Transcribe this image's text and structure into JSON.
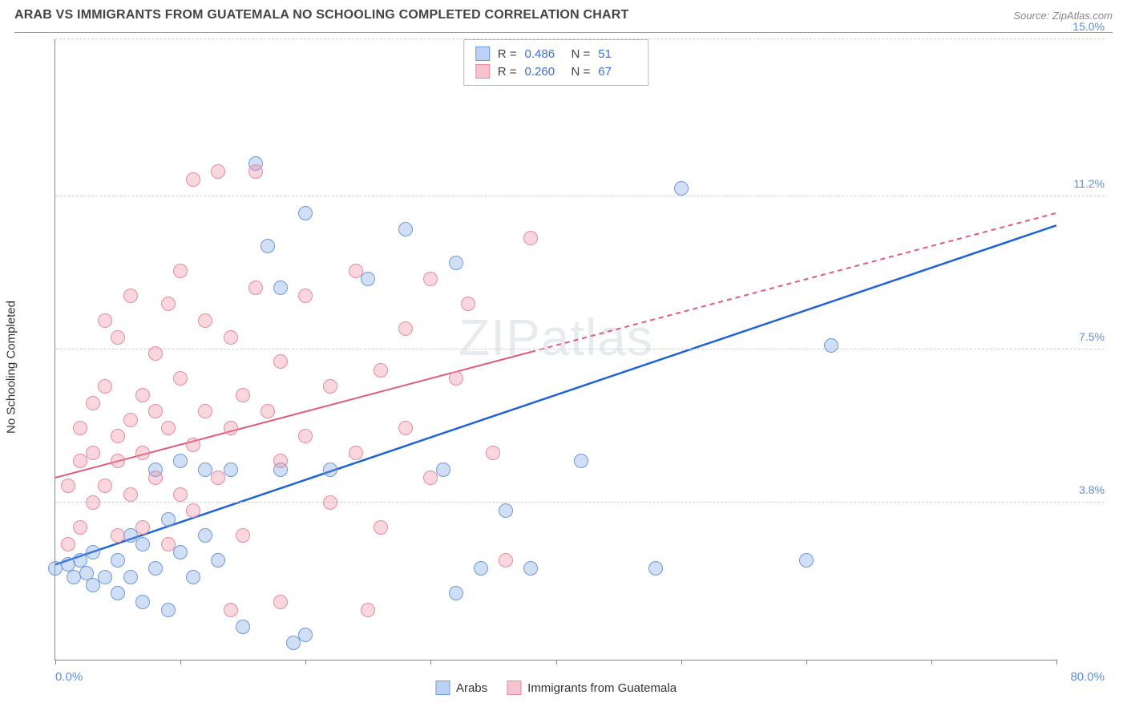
{
  "title": "ARAB VS IMMIGRANTS FROM GUATEMALA NO SCHOOLING COMPLETED CORRELATION CHART",
  "source_label": "Source:",
  "source_name": "ZipAtlas.com",
  "ylabel": "No Schooling Completed",
  "watermark_primary": "ZIP",
  "watermark_secondary": "atlas",
  "chart": {
    "type": "scatter",
    "xlim": [
      0,
      80
    ],
    "ylim": [
      0,
      15
    ],
    "x_min_label": "0.0%",
    "x_max_label": "80.0%",
    "y_ticks": [
      3.8,
      7.5,
      11.2,
      15.0
    ],
    "y_tick_labels": [
      "3.8%",
      "7.5%",
      "11.2%",
      "15.0%"
    ],
    "x_tick_positions": [
      0,
      10,
      20,
      30,
      40,
      50,
      60,
      70,
      80
    ],
    "background_color": "#ffffff",
    "grid_color": "#d0d0d0",
    "axis_color": "#888888",
    "point_radius": 9,
    "point_border_width": 1.5,
    "series": [
      {
        "name": "Arabs",
        "fill_color": "rgba(120,160,230,0.35)",
        "stroke_color": "#6d9ae0",
        "swatch_fill": "#bcd2f2",
        "swatch_border": "#6d9ae0",
        "stats": {
          "R": "0.486",
          "N": "51"
        },
        "trend": {
          "color": "#1f63d6",
          "width": 2.5,
          "dash_solid_until_x": 80,
          "x1": 0,
          "y1": 2.3,
          "x2": 80,
          "y2": 10.5
        },
        "points": [
          [
            0,
            2.2
          ],
          [
            1,
            2.3
          ],
          [
            1.5,
            2.0
          ],
          [
            2,
            2.4
          ],
          [
            2.5,
            2.1
          ],
          [
            3,
            1.8
          ],
          [
            3,
            2.6
          ],
          [
            4,
            2.0
          ],
          [
            5,
            1.6
          ],
          [
            5,
            2.4
          ],
          [
            6,
            2.0
          ],
          [
            6,
            3.0
          ],
          [
            7,
            1.4
          ],
          [
            7,
            2.8
          ],
          [
            8,
            2.2
          ],
          [
            8,
            4.6
          ],
          [
            9,
            1.2
          ],
          [
            9,
            3.4
          ],
          [
            10,
            2.6
          ],
          [
            10,
            4.8
          ],
          [
            11,
            2.0
          ],
          [
            12,
            3.0
          ],
          [
            12,
            4.6
          ],
          [
            13,
            2.4
          ],
          [
            14,
            4.6
          ],
          [
            15,
            0.8
          ],
          [
            16,
            12.0
          ],
          [
            17,
            10.0
          ],
          [
            18,
            4.6
          ],
          [
            18,
            9.0
          ],
          [
            19,
            0.4
          ],
          [
            20,
            10.8
          ],
          [
            20,
            0.6
          ],
          [
            22,
            4.6
          ],
          [
            25,
            9.2
          ],
          [
            28,
            10.4
          ],
          [
            31,
            4.6
          ],
          [
            32,
            9.6
          ],
          [
            32,
            1.6
          ],
          [
            34,
            2.2
          ],
          [
            36,
            3.6
          ],
          [
            38,
            2.2
          ],
          [
            42,
            4.8
          ],
          [
            50,
            11.4
          ],
          [
            48,
            2.2
          ],
          [
            62,
            7.6
          ],
          [
            60,
            2.4
          ]
        ]
      },
      {
        "name": "Immigrants from Guatemala",
        "fill_color": "rgba(240,140,160,0.35)",
        "stroke_color": "#e88aa0",
        "swatch_fill": "#f6c3cf",
        "swatch_border": "#e88aa0",
        "stats": {
          "R": "0.260",
          "N": "67"
        },
        "trend": {
          "color": "#e35b7a",
          "width": 2,
          "dash_solid_until_x": 38,
          "x1": 0,
          "y1": 4.4,
          "x2": 80,
          "y2": 10.8
        },
        "points": [
          [
            1,
            2.8
          ],
          [
            1,
            4.2
          ],
          [
            2,
            3.2
          ],
          [
            2,
            4.8
          ],
          [
            2,
            5.6
          ],
          [
            3,
            3.8
          ],
          [
            3,
            5.0
          ],
          [
            3,
            6.2
          ],
          [
            4,
            4.2
          ],
          [
            4,
            6.6
          ],
          [
            4,
            8.2
          ],
          [
            5,
            3.0
          ],
          [
            5,
            4.8
          ],
          [
            5,
            5.4
          ],
          [
            5,
            7.8
          ],
          [
            6,
            4.0
          ],
          [
            6,
            5.8
          ],
          [
            6,
            8.8
          ],
          [
            7,
            3.2
          ],
          [
            7,
            5.0
          ],
          [
            7,
            6.4
          ],
          [
            8,
            4.4
          ],
          [
            8,
            6.0
          ],
          [
            8,
            7.4
          ],
          [
            9,
            2.8
          ],
          [
            9,
            5.6
          ],
          [
            9,
            8.6
          ],
          [
            10,
            4.0
          ],
          [
            10,
            6.8
          ],
          [
            10,
            9.4
          ],
          [
            11,
            3.6
          ],
          [
            11,
            5.2
          ],
          [
            11,
            11.6
          ],
          [
            12,
            6.0
          ],
          [
            12,
            8.2
          ],
          [
            13,
            4.4
          ],
          [
            13,
            11.8
          ],
          [
            14,
            5.6
          ],
          [
            14,
            7.8
          ],
          [
            15,
            3.0
          ],
          [
            15,
            6.4
          ],
          [
            16,
            9.0
          ],
          [
            16,
            11.8
          ],
          [
            17,
            6.0
          ],
          [
            18,
            4.8
          ],
          [
            18,
            7.2
          ],
          [
            20,
            5.4
          ],
          [
            20,
            8.8
          ],
          [
            22,
            3.8
          ],
          [
            22,
            6.6
          ],
          [
            24,
            5.0
          ],
          [
            24,
            9.4
          ],
          [
            25,
            1.2
          ],
          [
            26,
            7.0
          ],
          [
            26,
            3.2
          ],
          [
            28,
            5.6
          ],
          [
            28,
            8.0
          ],
          [
            30,
            4.4
          ],
          [
            30,
            9.2
          ],
          [
            32,
            6.8
          ],
          [
            33,
            8.6
          ],
          [
            35,
            5.0
          ],
          [
            36,
            2.4
          ],
          [
            38,
            10.2
          ],
          [
            14,
            1.2
          ],
          [
            18,
            1.4
          ]
        ]
      }
    ]
  },
  "bottom_legend": [
    {
      "label": "Arabs",
      "fill": "#bcd2f2",
      "border": "#6d9ae0"
    },
    {
      "label": "Immigrants from Guatemala",
      "fill": "#f6c3cf",
      "border": "#e88aa0"
    }
  ]
}
